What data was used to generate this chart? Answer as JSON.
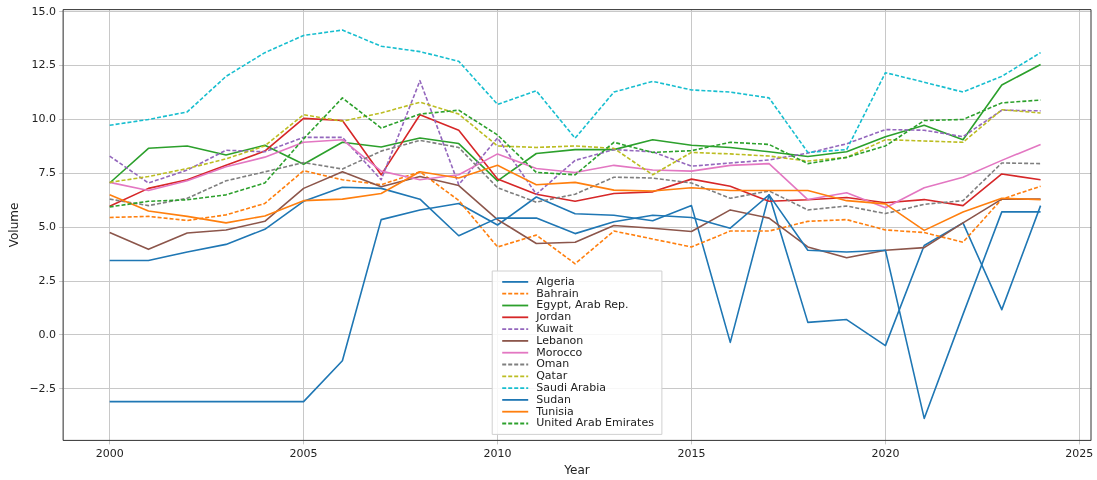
{
  "chart_data": {
    "type": "line",
    "xlabel": "Year",
    "ylabel": "Volume",
    "grid": true,
    "legend": "bottom",
    "x": [
      2000,
      2001,
      2002,
      2003,
      2004,
      2005,
      2006,
      2007,
      2008,
      2009,
      2010,
      2011,
      2012,
      2013,
      2014,
      2015,
      2016,
      2017,
      2018,
      2019,
      2020,
      2021,
      2022,
      2023,
      2024
    ],
    "xlim": [
      1998.8,
      2025.3
    ],
    "xticks": [
      2000,
      2005,
      2010,
      2015,
      2020,
      2025
    ],
    "ylim": [
      -4.9,
      15.1
    ],
    "yticks": [
      {
        "value": -2.5,
        "label": "−2.5"
      },
      {
        "value": 0,
        "label": "0.0"
      },
      {
        "value": 2.5,
        "label": "2.5"
      },
      {
        "value": 5,
        "label": "5.0"
      },
      {
        "value": 7.5,
        "label": "7.5"
      },
      {
        "value": 10,
        "label": "10.0"
      },
      {
        "value": 12.5,
        "label": "12.5"
      },
      {
        "value": 15,
        "label": "15.0"
      }
    ],
    "series": [
      {
        "name": "Algeria",
        "color": "#1f77b4",
        "line_style": "solid",
        "values": [
          -3.1,
          -3.1,
          -3.1,
          -3.1,
          -3.1,
          -3.1,
          -1.2,
          5.35,
          5.8,
          6.1,
          5.1,
          6.4,
          5.62,
          5.55,
          5.3,
          6.0,
          -0.35,
          6.5,
          0.58,
          0.71,
          -0.5,
          4.15,
          5.2,
          1.17,
          6.0
        ]
      },
      {
        "name": "Bahrain",
        "color": "#ff7f0e",
        "line_style": "dashed",
        "values": [
          5.45,
          5.5,
          5.31,
          5.57,
          6.1,
          7.62,
          7.2,
          6.97,
          7.57,
          6.24,
          4.08,
          4.63,
          3.3,
          4.82,
          4.45,
          4.08,
          4.82,
          4.82,
          5.27,
          5.35,
          4.87,
          4.75,
          4.3,
          6.3,
          6.9
        ]
      },
      {
        "name": "Egypt, Arab Rep.",
        "color": "#2ca02c",
        "line_style": "solid",
        "values": [
          7.05,
          8.66,
          8.77,
          8.35,
          8.8,
          7.92,
          8.94,
          8.72,
          9.14,
          8.88,
          7.15,
          8.42,
          8.6,
          8.6,
          9.06,
          8.8,
          8.7,
          8.5,
          8.28,
          8.5,
          9.2,
          9.73,
          9.06,
          11.6,
          12.55
        ]
      },
      {
        "name": "Jordan",
        "color": "#d62728",
        "line_style": "solid",
        "values": [
          5.97,
          6.8,
          7.2,
          7.87,
          8.53,
          10.05,
          9.95,
          7.43,
          10.22,
          9.5,
          7.23,
          6.53,
          6.2,
          6.56,
          6.64,
          7.23,
          6.9,
          6.2,
          6.27,
          6.38,
          6.13,
          6.28,
          6.0,
          7.47,
          7.2
        ]
      },
      {
        "name": "Kuwait",
        "color": "#9467bd",
        "line_style": "dashed",
        "values": [
          8.3,
          7.05,
          7.65,
          8.57,
          8.5,
          9.17,
          9.17,
          7.2,
          11.8,
          6.97,
          9.14,
          6.53,
          8.1,
          8.6,
          8.5,
          7.83,
          7.98,
          8.12,
          8.44,
          8.87,
          9.53,
          9.5,
          9.2,
          10.43,
          10.4
        ]
      },
      {
        "name": "Lebanon",
        "color": "#8c564b",
        "line_style": "solid",
        "values": [
          4.75,
          3.97,
          4.73,
          4.87,
          5.27,
          6.8,
          7.57,
          6.88,
          7.35,
          6.93,
          5.35,
          4.24,
          4.3,
          5.08,
          4.95,
          4.8,
          5.8,
          5.42,
          4.08,
          3.58,
          3.93,
          4.05,
          5.2,
          6.3,
          6.3
        ]
      },
      {
        "name": "Morocco",
        "color": "#e377c2",
        "line_style": "solid",
        "values": [
          7.08,
          6.7,
          7.15,
          7.8,
          8.25,
          8.94,
          9.06,
          7.6,
          7.2,
          7.43,
          8.4,
          7.72,
          7.54,
          7.87,
          7.65,
          7.6,
          7.87,
          7.95,
          6.28,
          6.6,
          5.9,
          6.83,
          7.32,
          8.1,
          8.84
        ]
      },
      {
        "name": "Oman",
        "color": "#7f7f7f",
        "line_style": "dashed",
        "values": [
          6.3,
          6.0,
          6.34,
          7.15,
          7.57,
          8.0,
          7.7,
          8.53,
          9.03,
          8.7,
          6.83,
          6.16,
          6.53,
          7.32,
          7.28,
          7.05,
          6.34,
          6.68,
          5.8,
          5.98,
          5.63,
          6.06,
          6.23,
          7.98,
          7.95
        ]
      },
      {
        "name": "Qatar",
        "color": "#bcbd22",
        "line_style": "dashed",
        "values": [
          7.08,
          7.35,
          7.72,
          8.17,
          8.77,
          10.22,
          9.92,
          10.3,
          10.8,
          10.25,
          8.77,
          8.7,
          8.77,
          8.66,
          7.43,
          8.47,
          8.4,
          8.3,
          8.07,
          8.24,
          9.06,
          9.0,
          8.94,
          10.45,
          10.3
        ]
      },
      {
        "name": "Saudi Arabia",
        "color": "#17becf",
        "line_style": "dashed",
        "values": [
          9.73,
          10.0,
          10.35,
          12.0,
          13.1,
          13.9,
          14.15,
          13.4,
          13.15,
          12.7,
          10.7,
          11.33,
          9.13,
          11.27,
          11.77,
          11.37,
          11.27,
          11.0,
          8.47,
          8.6,
          12.17,
          11.73,
          11.27,
          12.0,
          13.1
        ]
      },
      {
        "name": "Sudan",
        "color": "#1f77b4",
        "line_style": "solid",
        "values": [
          3.45,
          3.45,
          3.85,
          4.2,
          4.9,
          6.2,
          6.85,
          6.8,
          6.3,
          4.6,
          5.42,
          5.42,
          4.7,
          5.25,
          5.55,
          5.45,
          4.95,
          6.5,
          3.93,
          3.85,
          3.93,
          -3.88,
          0.95,
          5.71,
          5.71
        ]
      },
      {
        "name": "Tunisia",
        "color": "#ff7f0e",
        "line_style": "solid",
        "values": [
          6.5,
          5.75,
          5.5,
          5.2,
          5.52,
          6.23,
          6.3,
          6.56,
          7.57,
          7.28,
          7.87,
          6.97,
          7.08,
          6.72,
          6.68,
          6.83,
          6.7,
          6.7,
          6.7,
          6.23,
          6.08,
          4.85,
          5.7,
          6.34,
          6.28
        ]
      },
      {
        "name": "United Arab Emirates",
        "color": "#2ca02c",
        "line_style": "dashed",
        "values": [
          5.94,
          6.2,
          6.27,
          6.5,
          7.05,
          9.1,
          11.0,
          9.6,
          10.25,
          10.43,
          9.28,
          7.54,
          7.43,
          8.94,
          8.47,
          8.55,
          8.94,
          8.84,
          7.95,
          8.24,
          8.77,
          9.95,
          10.0,
          10.77,
          10.9
        ]
      }
    ]
  }
}
